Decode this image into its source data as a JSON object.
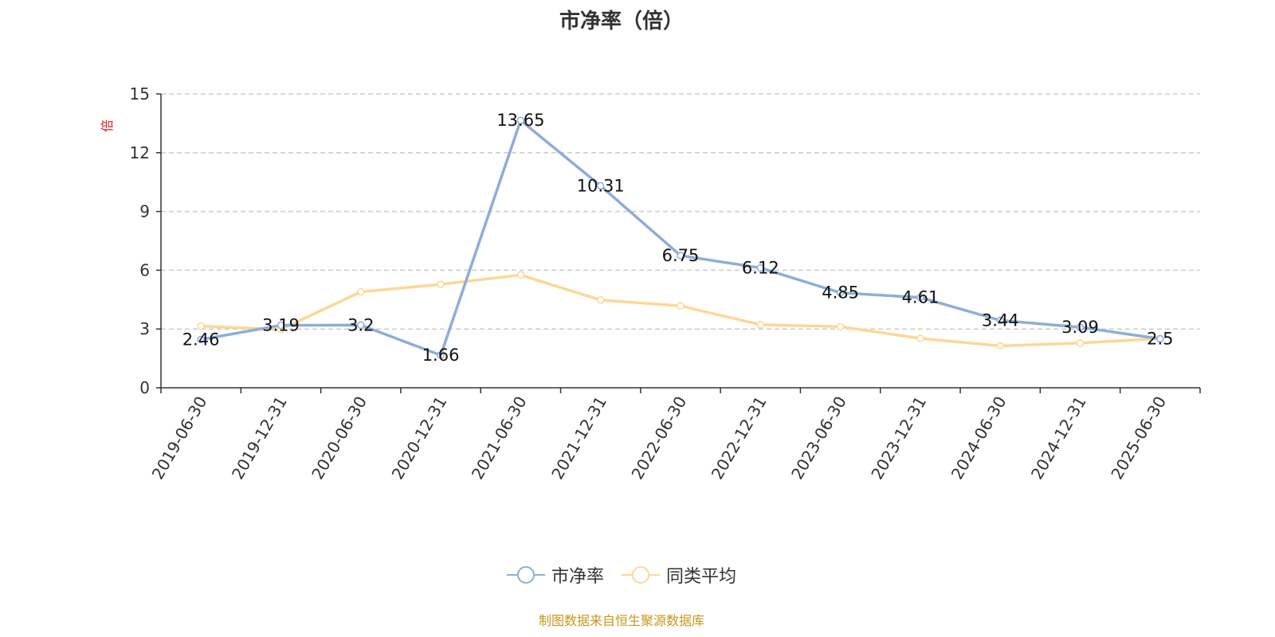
{
  "chart_data": {
    "type": "line",
    "title": "市净率（倍）",
    "ylabel": "倍",
    "ylim": [
      0,
      15
    ],
    "yticks": [
      0,
      3,
      6,
      9,
      12,
      15
    ],
    "grid": true,
    "legend_position": "bottom",
    "categories": [
      "2019-06-30",
      "2019-12-31",
      "2020-06-30",
      "2020-12-31",
      "2021-06-30",
      "2021-12-31",
      "2022-06-30",
      "2022-12-31",
      "2023-06-30",
      "2023-12-31",
      "2024-06-30",
      "2024-12-31",
      "2025-06-30"
    ],
    "series": [
      {
        "name": "市净率",
        "color": "#8eaed8",
        "values": [
          2.46,
          3.19,
          3.2,
          1.66,
          13.65,
          10.31,
          6.75,
          6.12,
          4.85,
          4.61,
          3.44,
          3.09,
          2.5
        ],
        "data_labels": [
          "2.46",
          "3.19",
          "3.2",
          "1.66",
          "13.65",
          "10.31",
          "6.75",
          "6.12",
          "4.85",
          "4.61",
          "3.44",
          "3.09",
          "2.5"
        ]
      },
      {
        "name": "同类平均",
        "color": "#fbd896",
        "values": [
          3.15,
          2.98,
          4.9,
          5.28,
          5.76,
          4.48,
          4.18,
          3.22,
          3.12,
          2.52,
          2.14,
          2.28,
          2.52
        ]
      }
    ]
  },
  "footer": {
    "source": "制图数据来自恒生聚源数据库"
  }
}
